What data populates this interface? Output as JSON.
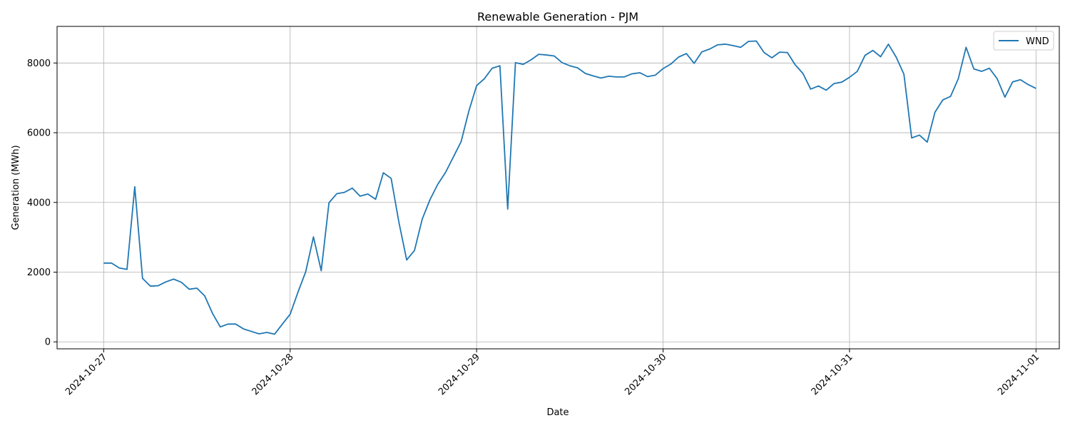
{
  "chart_data": {
    "type": "line",
    "title": "Renewable Generation - PJM",
    "xlabel": "Date",
    "ylabel": "Generation (MWh)",
    "x_start": "2024-10-27T00:00",
    "x_step_hours": 1,
    "xlim": [
      "2024-10-26T18:00",
      "2024-11-01T03:00"
    ],
    "ylim": [
      -200,
      9050
    ],
    "x_ticks": [
      "2024-10-27",
      "2024-10-28",
      "2024-10-29",
      "2024-10-30",
      "2024-10-31",
      "2024-11-01"
    ],
    "y_ticks": [
      0,
      2000,
      4000,
      6000,
      8000
    ],
    "grid": true,
    "legend_position": "top-right",
    "series": [
      {
        "name": "WND",
        "color": "#1f77b4",
        "values": [
          2260,
          2260,
          2120,
          2080,
          4450,
          1820,
          1600,
          1610,
          1720,
          1800,
          1710,
          1510,
          1540,
          1320,
          820,
          430,
          510,
          510,
          370,
          300,
          230,
          270,
          220,
          510,
          790,
          1420,
          2010,
          3010,
          2040,
          3990,
          4250,
          4290,
          4410,
          4180,
          4240,
          4090,
          4850,
          4690,
          3430,
          2350,
          2620,
          3520,
          4080,
          4520,
          4860,
          5300,
          5740,
          6620,
          7350,
          7550,
          7850,
          7920,
          3810,
          8010,
          7960,
          8090,
          8250,
          8230,
          8200,
          8010,
          7920,
          7860,
          7700,
          7630,
          7570,
          7620,
          7600,
          7600,
          7690,
          7720,
          7610,
          7650,
          7840,
          7970,
          8170,
          8270,
          7990,
          8320,
          8400,
          8520,
          8540,
          8500,
          8450,
          8620,
          8630,
          8300,
          8150,
          8310,
          8300,
          7950,
          7700,
          7250,
          7340,
          7220,
          7410,
          7450,
          7590,
          7760,
          8220,
          8360,
          8180,
          8540,
          8170,
          7680,
          5850,
          5930,
          5730,
          6590,
          6940,
          7040,
          7550,
          8450,
          7830,
          7760,
          7850,
          7550,
          7020,
          7460,
          7520,
          7380,
          7270
        ]
      }
    ]
  }
}
